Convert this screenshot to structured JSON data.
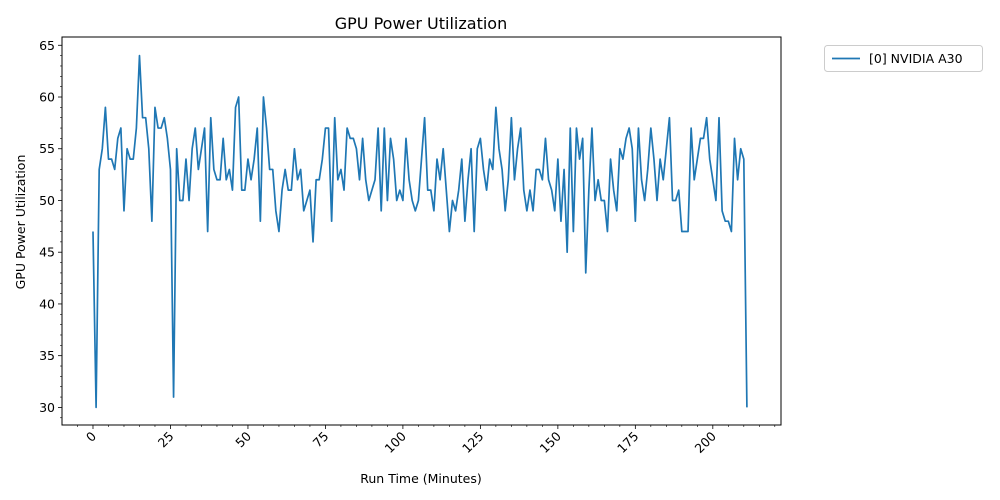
{
  "chart_data": {
    "type": "line",
    "title": "GPU Power Utilization",
    "xlabel": "Run Time (Minutes)",
    "ylabel": "GPU Power Utilization",
    "xlim": [
      -10,
      222
    ],
    "ylim": [
      28.3,
      65.8
    ],
    "xticks": [
      0,
      25,
      50,
      75,
      100,
      125,
      150,
      175,
      200
    ],
    "yticks": [
      30,
      35,
      40,
      45,
      50,
      55,
      60,
      65
    ],
    "legend": {
      "position": "outside-top-right"
    },
    "series": [
      {
        "name": "[0] NVIDIA A30",
        "color": "#1f77b4",
        "values": [
          47,
          30,
          53,
          55,
          59,
          54,
          54,
          53,
          56,
          57,
          49,
          55,
          54,
          54,
          57,
          64,
          58,
          58,
          55,
          48,
          59,
          57,
          57,
          58,
          56,
          53,
          31,
          55,
          50,
          50,
          54,
          50,
          55,
          57,
          53,
          55,
          57,
          47,
          58,
          53,
          52,
          52,
          56,
          52,
          53,
          51,
          59,
          60,
          51,
          51,
          54,
          52,
          54,
          57,
          48,
          60,
          57,
          53,
          53,
          49,
          47,
          51,
          53,
          51,
          51,
          55,
          52,
          53,
          49,
          50,
          51,
          46,
          52,
          52,
          54,
          57,
          57,
          48,
          58,
          52,
          53,
          51,
          57,
          56,
          56,
          55,
          52,
          56,
          52,
          50,
          51,
          52,
          57,
          49,
          57,
          50,
          56,
          54,
          50,
          51,
          50,
          56,
          52,
          50,
          49,
          50,
          54,
          58,
          51,
          51,
          49,
          54,
          52,
          55,
          51,
          47,
          50,
          49,
          51,
          54,
          48,
          52,
          55,
          47,
          55,
          56,
          53,
          51,
          54,
          53,
          59,
          55,
          53,
          49,
          52,
          58,
          52,
          55,
          57,
          51,
          49,
          51,
          49,
          53,
          53,
          52,
          56,
          52,
          51,
          49,
          54,
          48,
          53,
          45,
          57,
          47,
          57,
          54,
          56,
          43,
          51,
          57,
          50,
          52,
          50,
          50,
          47,
          54,
          51,
          49,
          55,
          54,
          56,
          57,
          55,
          48,
          57,
          52,
          50,
          53,
          57,
          54,
          50,
          54,
          52,
          55,
          58,
          50,
          50,
          51,
          47,
          47,
          47,
          57,
          52,
          54,
          56,
          56,
          58,
          54,
          52,
          50,
          58,
          49,
          48,
          48,
          47,
          56,
          52,
          55,
          54,
          30
        ]
      }
    ]
  }
}
